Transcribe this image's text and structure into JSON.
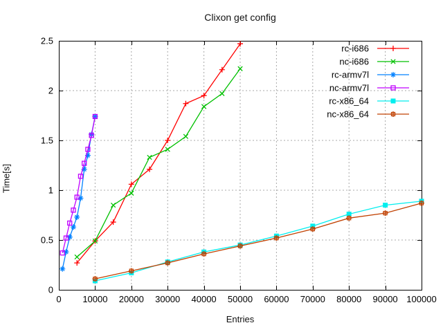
{
  "window": {
    "title": "Clixon get config"
  },
  "chart_data": {
    "type": "line",
    "title": "Clixon get config",
    "xlabel": "Entries",
    "ylabel": "Time[s]",
    "xlim": [
      0,
      100000
    ],
    "ylim": [
      0,
      2.5
    ],
    "x_ticks": [
      0,
      10000,
      20000,
      30000,
      40000,
      50000,
      60000,
      70000,
      80000,
      90000,
      100000
    ],
    "y_ticks": [
      0,
      0.5,
      1,
      1.5,
      2,
      2.5
    ],
    "grid": true,
    "grid_color": "#a8a8a8",
    "border_color": "#000000",
    "legend_position": "top-right-inside",
    "series": [
      {
        "name": "rc-i686",
        "color": "#ff0000",
        "marker": "plus",
        "x": [
          5000,
          10000,
          15000,
          20000,
          25000,
          30000,
          35000,
          40000,
          45000,
          50000
        ],
        "y": [
          0.27,
          0.49,
          0.68,
          1.06,
          1.21,
          1.5,
          1.87,
          1.95,
          2.21,
          2.47
        ]
      },
      {
        "name": "nc-i686",
        "color": "#00c000",
        "marker": "cross",
        "x": [
          5000,
          10000,
          15000,
          20000,
          25000,
          30000,
          35000,
          40000,
          45000,
          50000
        ],
        "y": [
          0.33,
          0.49,
          0.85,
          0.97,
          1.33,
          1.41,
          1.54,
          1.84,
          1.97,
          2.22
        ]
      },
      {
        "name": "rc-armv7l",
        "color": "#0080ff",
        "marker": "asterisk",
        "x": [
          1000,
          2000,
          3000,
          4000,
          5000,
          6000,
          7000,
          8000,
          9000,
          10000
        ],
        "y": [
          0.21,
          0.38,
          0.53,
          0.63,
          0.73,
          0.92,
          1.21,
          1.35,
          1.56,
          1.74
        ]
      },
      {
        "name": "nc-armv7l",
        "color": "#c000ff",
        "marker": "square-open",
        "x": [
          1000,
          2000,
          3000,
          4000,
          5000,
          6000,
          7000,
          8000,
          9000,
          10000
        ],
        "y": [
          0.37,
          0.52,
          0.67,
          0.8,
          0.93,
          1.14,
          1.27,
          1.41,
          1.55,
          1.74
        ]
      },
      {
        "name": "rc-x86_64",
        "color": "#00eeee",
        "marker": "square-filled",
        "x": [
          10000,
          20000,
          30000,
          40000,
          50000,
          60000,
          70000,
          80000,
          90000,
          100000
        ],
        "y": [
          0.09,
          0.17,
          0.28,
          0.38,
          0.45,
          0.54,
          0.64,
          0.76,
          0.85,
          0.89
        ]
      },
      {
        "name": "nc-x86_64",
        "color": "#c04000",
        "marker": "square-plus",
        "x": [
          10000,
          20000,
          30000,
          40000,
          50000,
          60000,
          70000,
          80000,
          90000,
          100000
        ],
        "y": [
          0.11,
          0.19,
          0.27,
          0.36,
          0.44,
          0.52,
          0.61,
          0.72,
          0.77,
          0.87
        ]
      }
    ]
  }
}
